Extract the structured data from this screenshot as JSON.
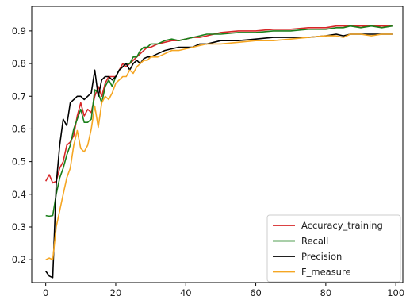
{
  "chart_data": {
    "type": "line",
    "title": "",
    "xlabel": "",
    "ylabel": "",
    "xlim": [
      -4,
      102
    ],
    "ylim": [
      0.13,
      0.975
    ],
    "xticks": [
      0,
      20,
      40,
      60,
      80,
      100
    ],
    "yticks": [
      0.2,
      0.3,
      0.4,
      0.5,
      0.6,
      0.7,
      0.8,
      0.9
    ],
    "xtick_labels": [
      "0",
      "20",
      "40",
      "60",
      "80",
      "100"
    ],
    "ytick_labels": [
      "0.2",
      "0.3",
      "0.4",
      "0.5",
      "0.6",
      "0.7",
      "0.8",
      "0.9"
    ],
    "grid": false,
    "legend_position": "lower-right",
    "series": [
      {
        "name": "Accuracy_training",
        "color": "#d62728",
        "x": [
          0,
          1,
          2,
          3,
          4,
          5,
          6,
          7,
          8,
          9,
          10,
          11,
          12,
          13,
          14,
          15,
          16,
          17,
          18,
          19,
          20,
          21,
          22,
          23,
          24,
          25,
          26,
          27,
          28,
          29,
          30,
          32,
          34,
          36,
          38,
          40,
          42,
          44,
          46,
          48,
          50,
          55,
          60,
          65,
          70,
          75,
          80,
          83,
          85,
          87,
          90,
          93,
          96,
          99
        ],
        "y": [
          0.44,
          0.46,
          0.435,
          0.44,
          0.48,
          0.5,
          0.55,
          0.56,
          0.58,
          0.64,
          0.68,
          0.64,
          0.66,
          0.65,
          0.7,
          0.73,
          0.7,
          0.74,
          0.76,
          0.76,
          0.76,
          0.78,
          0.8,
          0.79,
          0.8,
          0.81,
          0.82,
          0.83,
          0.84,
          0.85,
          0.85,
          0.86,
          0.865,
          0.87,
          0.87,
          0.875,
          0.88,
          0.88,
          0.885,
          0.89,
          0.895,
          0.9,
          0.9,
          0.905,
          0.905,
          0.91,
          0.91,
          0.915,
          0.915,
          0.915,
          0.915,
          0.915,
          0.915,
          0.915
        ]
      },
      {
        "name": "Recall",
        "color": "#1a7f1a",
        "x": [
          0,
          1,
          2,
          3,
          4,
          5,
          6,
          7,
          8,
          9,
          10,
          11,
          12,
          13,
          14,
          15,
          16,
          17,
          18,
          19,
          20,
          21,
          22,
          23,
          24,
          25,
          26,
          27,
          28,
          29,
          30,
          32,
          34,
          36,
          38,
          40,
          42,
          44,
          46,
          48,
          50,
          55,
          60,
          65,
          70,
          75,
          80,
          83,
          85,
          87,
          90,
          93,
          96,
          99
        ],
        "y": [
          0.335,
          0.333,
          0.335,
          0.4,
          0.45,
          0.48,
          0.52,
          0.55,
          0.6,
          0.63,
          0.66,
          0.62,
          0.62,
          0.63,
          0.72,
          0.71,
          0.68,
          0.73,
          0.75,
          0.73,
          0.76,
          0.78,
          0.79,
          0.8,
          0.8,
          0.82,
          0.82,
          0.84,
          0.85,
          0.85,
          0.86,
          0.86,
          0.87,
          0.875,
          0.87,
          0.875,
          0.88,
          0.885,
          0.89,
          0.89,
          0.89,
          0.895,
          0.895,
          0.9,
          0.9,
          0.905,
          0.905,
          0.91,
          0.91,
          0.915,
          0.91,
          0.915,
          0.91,
          0.915
        ]
      },
      {
        "name": "Precision",
        "color": "#000000",
        "x": [
          0,
          1,
          2,
          3,
          4,
          5,
          6,
          7,
          8,
          9,
          10,
          11,
          12,
          13,
          14,
          15,
          16,
          17,
          18,
          19,
          20,
          21,
          22,
          23,
          24,
          25,
          26,
          27,
          28,
          29,
          30,
          32,
          34,
          36,
          38,
          40,
          42,
          44,
          46,
          48,
          50,
          55,
          60,
          65,
          70,
          75,
          80,
          83,
          85,
          87,
          90,
          93,
          96,
          99
        ],
        "y": [
          0.165,
          0.15,
          0.145,
          0.43,
          0.55,
          0.63,
          0.61,
          0.68,
          0.69,
          0.7,
          0.7,
          0.69,
          0.7,
          0.71,
          0.78,
          0.7,
          0.75,
          0.76,
          0.76,
          0.75,
          0.76,
          0.78,
          0.79,
          0.8,
          0.78,
          0.8,
          0.81,
          0.8,
          0.815,
          0.82,
          0.82,
          0.83,
          0.84,
          0.845,
          0.85,
          0.85,
          0.85,
          0.86,
          0.86,
          0.865,
          0.87,
          0.87,
          0.875,
          0.88,
          0.88,
          0.88,
          0.885,
          0.89,
          0.885,
          0.89,
          0.89,
          0.89,
          0.89,
          0.89
        ]
      },
      {
        "name": "F_measure",
        "color": "#f5a623",
        "x": [
          0,
          1,
          2,
          3,
          4,
          5,
          6,
          7,
          8,
          9,
          10,
          11,
          12,
          13,
          14,
          15,
          16,
          17,
          18,
          19,
          20,
          21,
          22,
          23,
          24,
          25,
          26,
          27,
          28,
          29,
          30,
          32,
          34,
          36,
          38,
          40,
          42,
          44,
          46,
          48,
          50,
          55,
          60,
          65,
          70,
          75,
          80,
          83,
          85,
          87,
          90,
          93,
          96,
          99
        ],
        "y": [
          0.2,
          0.205,
          0.2,
          0.3,
          0.35,
          0.4,
          0.45,
          0.48,
          0.55,
          0.595,
          0.54,
          0.53,
          0.55,
          0.6,
          0.67,
          0.605,
          0.68,
          0.7,
          0.69,
          0.71,
          0.74,
          0.75,
          0.76,
          0.76,
          0.78,
          0.77,
          0.79,
          0.8,
          0.81,
          0.81,
          0.82,
          0.82,
          0.83,
          0.84,
          0.84,
          0.845,
          0.85,
          0.855,
          0.86,
          0.86,
          0.86,
          0.865,
          0.87,
          0.87,
          0.875,
          0.88,
          0.885,
          0.885,
          0.88,
          0.89,
          0.89,
          0.885,
          0.89,
          0.89
        ]
      }
    ]
  }
}
